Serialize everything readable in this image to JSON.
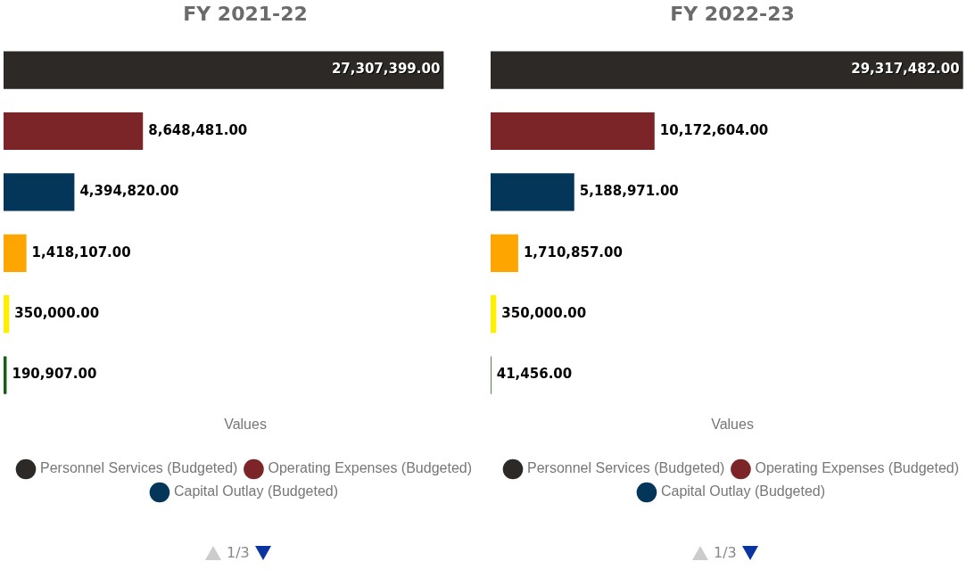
{
  "chart_data": [
    {
      "type": "bar",
      "title": "FY 2021-22",
      "orientation": "horizontal",
      "stacked": true,
      "categories": [
        null,
        null,
        null,
        null,
        null,
        null
      ],
      "legend": "bottom",
      "legend_title": "Values",
      "tick_labels": false,
      "annotations": [
        "1/3"
      ],
      "series": [
        {
          "name": "Personnel Services (Budgeted)",
          "color": "#2d2926",
          "values": [
            27307399,
            null,
            null,
            null,
            null,
            null
          ],
          "value_labels": [
            "27,307,399.00",
            null,
            null,
            null,
            null,
            null
          ]
        },
        {
          "name": "Operating Expenses (Budgeted)",
          "color": "#7b2528",
          "values": [
            null,
            8648481,
            null,
            null,
            null,
            null
          ],
          "value_labels": [
            null,
            "8,648,481.00",
            null,
            null,
            null,
            null
          ]
        },
        {
          "name": "Capital Outlay (Budgeted)",
          "color": "#033658",
          "values": [
            null,
            null,
            4394820,
            null,
            null,
            null
          ],
          "value_labels": [
            null,
            null,
            "4,394,820.00",
            null,
            null,
            null
          ]
        },
        {
          "color": "#ffa500",
          "values": [
            null,
            null,
            null,
            1418107,
            null,
            null
          ],
          "value_labels": [
            null,
            null,
            null,
            "1,418,107.00",
            null,
            null
          ]
        },
        {
          "color": "#ffee00",
          "values": [
            null,
            null,
            null,
            null,
            350000,
            null
          ],
          "value_labels": [
            null,
            null,
            null,
            null,
            "350,000.00",
            null
          ]
        },
        {
          "color": "#1a5c1a",
          "values": [
            null,
            null,
            null,
            null,
            null,
            190907
          ],
          "value_labels": [
            null,
            null,
            null,
            null,
            null,
            "190,907.00"
          ]
        }
      ]
    },
    {
      "type": "bar",
      "title": "FY 2022-23",
      "orientation": "horizontal",
      "stacked": true,
      "categories": [
        null,
        null,
        null,
        null,
        null,
        null
      ],
      "legend": "bottom",
      "legend_title": "Values",
      "tick_labels": false,
      "annotations": [
        "1/3"
      ],
      "series": [
        {
          "name": "Personnel Services (Budgeted)",
          "color": "#2d2926",
          "values": [
            29317482,
            null,
            null,
            null,
            null,
            null
          ],
          "value_labels": [
            "29,317,482.00",
            null,
            null,
            null,
            null,
            null
          ]
        },
        {
          "name": "Operating Expenses (Budgeted)",
          "color": "#7b2528",
          "values": [
            null,
            10172604,
            null,
            null,
            null,
            null
          ],
          "value_labels": [
            null,
            "10,172,604.00",
            null,
            null,
            null,
            null
          ]
        },
        {
          "name": "Capital Outlay (Budgeted)",
          "color": "#033658",
          "values": [
            null,
            null,
            5188971,
            null,
            null,
            null
          ],
          "value_labels": [
            null,
            null,
            "5,188,971.00",
            null,
            null,
            null
          ]
        },
        {
          "color": "#ffa500",
          "values": [
            null,
            null,
            null,
            1710857,
            null,
            null
          ],
          "value_labels": [
            null,
            null,
            null,
            "1,710,857.00",
            null,
            null
          ]
        },
        {
          "color": "#ffee00",
          "values": [
            null,
            null,
            null,
            null,
            350000,
            null
          ],
          "value_labels": [
            null,
            null,
            null,
            null,
            "350,000.00",
            null
          ]
        },
        {
          "color": "#1a5c1a",
          "values": [
            null,
            null,
            null,
            null,
            null,
            41456
          ],
          "value_labels": [
            null,
            null,
            null,
            null,
            null,
            "41,456.00"
          ]
        }
      ]
    }
  ]
}
